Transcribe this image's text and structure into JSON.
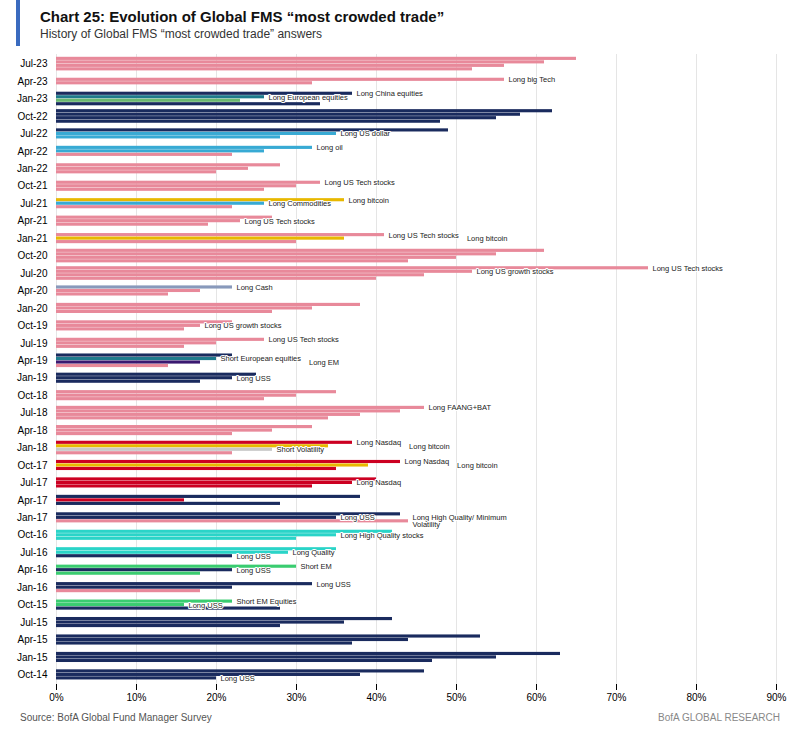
{
  "chart_data": {
    "type": "bar",
    "orientation": "horizontal",
    "title": "Chart 25: Evolution of Global FMS “most crowded trade”",
    "subtitle": "History of Global FMS “most crowded trade” answers",
    "source": "Source: BofA Global Fund Manager Survey",
    "watermark": "BofA GLOBAL RESEARCH",
    "xlim": [
      0,
      90
    ],
    "xticks": [
      {
        "value": 0,
        "label": "0%"
      },
      {
        "value": 10,
        "label": "10%"
      },
      {
        "value": 20,
        "label": "20%"
      },
      {
        "value": 30,
        "label": "30%"
      },
      {
        "value": 40,
        "label": "40%"
      },
      {
        "value": 50,
        "label": "50%"
      },
      {
        "value": 60,
        "label": "60%"
      },
      {
        "value": 70,
        "label": "70%"
      },
      {
        "value": 80,
        "label": "80%"
      },
      {
        "value": 90,
        "label": "90%"
      }
    ],
    "grid": true,
    "categories": [
      "Jul-23",
      "Apr-23",
      "Jan-23",
      "Oct-22",
      "Jul-22",
      "Apr-22",
      "Jan-22",
      "Oct-21",
      "Jul-21",
      "Apr-21",
      "Jan-21",
      "Oct-20",
      "Jul-20",
      "Apr-20",
      "Jan-20",
      "Oct-19",
      "Jul-19",
      "Apr-19",
      "Jan-19",
      "Oct-18",
      "Jul-18",
      "Apr-18",
      "Jan-18",
      "Oct-17",
      "Jul-17",
      "Apr-17",
      "Jan-17",
      "Oct-16",
      "Jul-16",
      "Apr-16",
      "Jan-16",
      "Oct-15",
      "Jul-15",
      "Apr-15",
      "Jan-15",
      "Oct-14"
    ],
    "values": [
      [
        65,
        61,
        56,
        52
      ],
      [
        56,
        32
      ],
      [
        37,
        26,
        23,
        33
      ],
      [
        62,
        58,
        55,
        48
      ],
      [
        49,
        35,
        28
      ],
      [
        32,
        26,
        22
      ],
      [
        28,
        24,
        20
      ],
      [
        33,
        30,
        26
      ],
      [
        36,
        26,
        22
      ],
      [
        27,
        23,
        19
      ],
      [
        41,
        36,
        30
      ],
      [
        61,
        55,
        50,
        44
      ],
      [
        74,
        52,
        46,
        40
      ],
      [
        22,
        18,
        14
      ],
      [
        38,
        32,
        27
      ],
      [
        22,
        18,
        16
      ],
      [
        26,
        20,
        16
      ],
      [
        22,
        20,
        18,
        14
      ],
      [
        25,
        22,
        18
      ],
      [
        35,
        30,
        26
      ],
      [
        46,
        43,
        38,
        34
      ],
      [
        32,
        27,
        22
      ],
      [
        37,
        34,
        27,
        22
      ],
      [
        43,
        39,
        35
      ],
      [
        40,
        37,
        32
      ],
      [
        38,
        16,
        28
      ],
      [
        43,
        35,
        44
      ],
      [
        42,
        35,
        30
      ],
      [
        35,
        29,
        22
      ],
      [
        30,
        22,
        18
      ],
      [
        32,
        22,
        18
      ],
      [
        22,
        16,
        28
      ],
      [
        42,
        36,
        28
      ],
      [
        53,
        44,
        37
      ],
      [
        63,
        55,
        47
      ],
      [
        46,
        38,
        20
      ]
    ],
    "colors": [
      [
        "#e8899a",
        "#e8899a",
        "#e8899a",
        "#e8899a"
      ],
      [
        "#e8899a",
        "#e8899a"
      ],
      [
        "#1a2b5e",
        "#1e7a8c",
        "#6ab870",
        "#1a2b5e"
      ],
      [
        "#1a2b5e",
        "#1a2b5e",
        "#1a2b5e",
        "#1a2b5e"
      ],
      [
        "#1a2b5e",
        "#38aad4",
        "#38aad4"
      ],
      [
        "#38aad4",
        "#38aad4",
        "#e8899a"
      ],
      [
        "#e8899a",
        "#e8899a",
        "#e8899a"
      ],
      [
        "#e8899a",
        "#e8899a",
        "#e8899a"
      ],
      [
        "#e8b800",
        "#38aad4",
        "#e8899a"
      ],
      [
        "#e8899a",
        "#e8899a",
        "#e8899a"
      ],
      [
        "#e8899a",
        "#e8b800",
        "#e8899a"
      ],
      [
        "#e8899a",
        "#e8899a",
        "#e8899a",
        "#e8899a"
      ],
      [
        "#e8899a",
        "#e8899a",
        "#e8899a",
        "#e8899a"
      ],
      [
        "#8899bb",
        "#e8899a",
        "#e8899a"
      ],
      [
        "#e8899a",
        "#e8899a",
        "#e8899a"
      ],
      [
        "#e8899a",
        "#e8899a",
        "#e8899a"
      ],
      [
        "#e8899a",
        "#e8899a",
        "#e8899a"
      ],
      [
        "#1a2b5e",
        "#1e7a8c",
        "#3a1870",
        "#e8899a"
      ],
      [
        "#1a2b5e",
        "#1a2b5e",
        "#1a2b5e"
      ],
      [
        "#e8899a",
        "#e8899a",
        "#e8899a"
      ],
      [
        "#e8899a",
        "#e8899a",
        "#e8899a",
        "#e8899a"
      ],
      [
        "#e8899a",
        "#e8899a",
        "#e8899a"
      ],
      [
        "#cc0022",
        "#e8b800",
        "#c8c8c8",
        "#e8899a"
      ],
      [
        "#cc0022",
        "#e8b800",
        "#cc0022"
      ],
      [
        "#cc0022",
        "#cc0022",
        "#cc0022"
      ],
      [
        "#1a2b5e",
        "#cc0022",
        "#1a2b5e"
      ],
      [
        "#1a2b5e",
        "#1a2b5e",
        "#e8899a"
      ],
      [
        "#2ad4c8",
        "#2ad4c8",
        "#2ad4c8"
      ],
      [
        "#2ad4c8",
        "#2ad4c8",
        "#1a2b5e"
      ],
      [
        "#3acc70",
        "#1a2b5e",
        "#3acc70"
      ],
      [
        "#1a2b5e",
        "#1a2b5e",
        "#e8899a"
      ],
      [
        "#3acc70",
        "#3acc70",
        "#1a2b5e"
      ],
      [
        "#1a2b5e",
        "#1a2b5e",
        "#1a2b5e"
      ],
      [
        "#1a2b5e",
        "#1a2b5e",
        "#1a2b5e"
      ],
      [
        "#1a2b5e",
        "#1a2b5e",
        "#1a2b5e"
      ],
      [
        "#1a2b5e",
        "#1a2b5e",
        "#1a2b5e"
      ]
    ],
    "annotations": [
      [
        null,
        null,
        null,
        null
      ],
      [
        "Long big Tech",
        null
      ],
      [
        "Long China equities",
        "Long European equities",
        null,
        null
      ],
      [
        null,
        null,
        null,
        null
      ],
      [
        null,
        "Long US dollar",
        null
      ],
      [
        "Long oil",
        null,
        null
      ],
      [
        null,
        null,
        null
      ],
      [
        "Long US Tech stocks",
        null,
        null
      ],
      [
        "Long bitcoin",
        "Long Commodities",
        null
      ],
      [
        null,
        "Long US Tech stocks",
        null
      ],
      [
        "Long US Tech stocks",
        "Long bitcoin",
        null
      ],
      [
        null,
        null,
        null,
        null
      ],
      [
        "Long US Tech stocks",
        "Long US growth stocks",
        null,
        null
      ],
      [
        "Long Cash",
        null,
        null
      ],
      [
        null,
        null,
        null
      ],
      [
        null,
        "Long US growth stocks",
        null
      ],
      [
        "Long US Tech stocks",
        null,
        null
      ],
      [
        null,
        "Short European equities",
        "Long EM",
        null
      ],
      [
        null,
        "Long USS",
        null
      ],
      [
        null,
        null,
        null
      ],
      [
        "Long FAANG+BAT",
        null,
        null,
        null
      ],
      [
        null,
        null,
        null
      ],
      [
        "Long Nasdaq",
        "Long bitcoin",
        "Short Volatility",
        null
      ],
      [
        "Long Nasdaq",
        "Long bitcoin",
        null
      ],
      [
        null,
        "Long Nasdaq",
        null
      ],
      [
        null,
        null,
        null
      ],
      [
        null,
        "Long USS",
        "Long High Quality/ Minimum\nVolatility"
      ],
      [
        null,
        "Long High Quality stocks",
        null
      ],
      [
        null,
        "Long Quality",
        "Long USS"
      ],
      [
        "Short EM",
        "Long USS",
        null
      ],
      [
        "Long USS",
        null,
        null
      ],
      [
        "Short EM Equities",
        "Long USS",
        null
      ],
      [
        null,
        null,
        null
      ],
      [
        null,
        null,
        null
      ],
      [
        null,
        null,
        null
      ],
      [
        null,
        null,
        "Long USS"
      ]
    ]
  }
}
